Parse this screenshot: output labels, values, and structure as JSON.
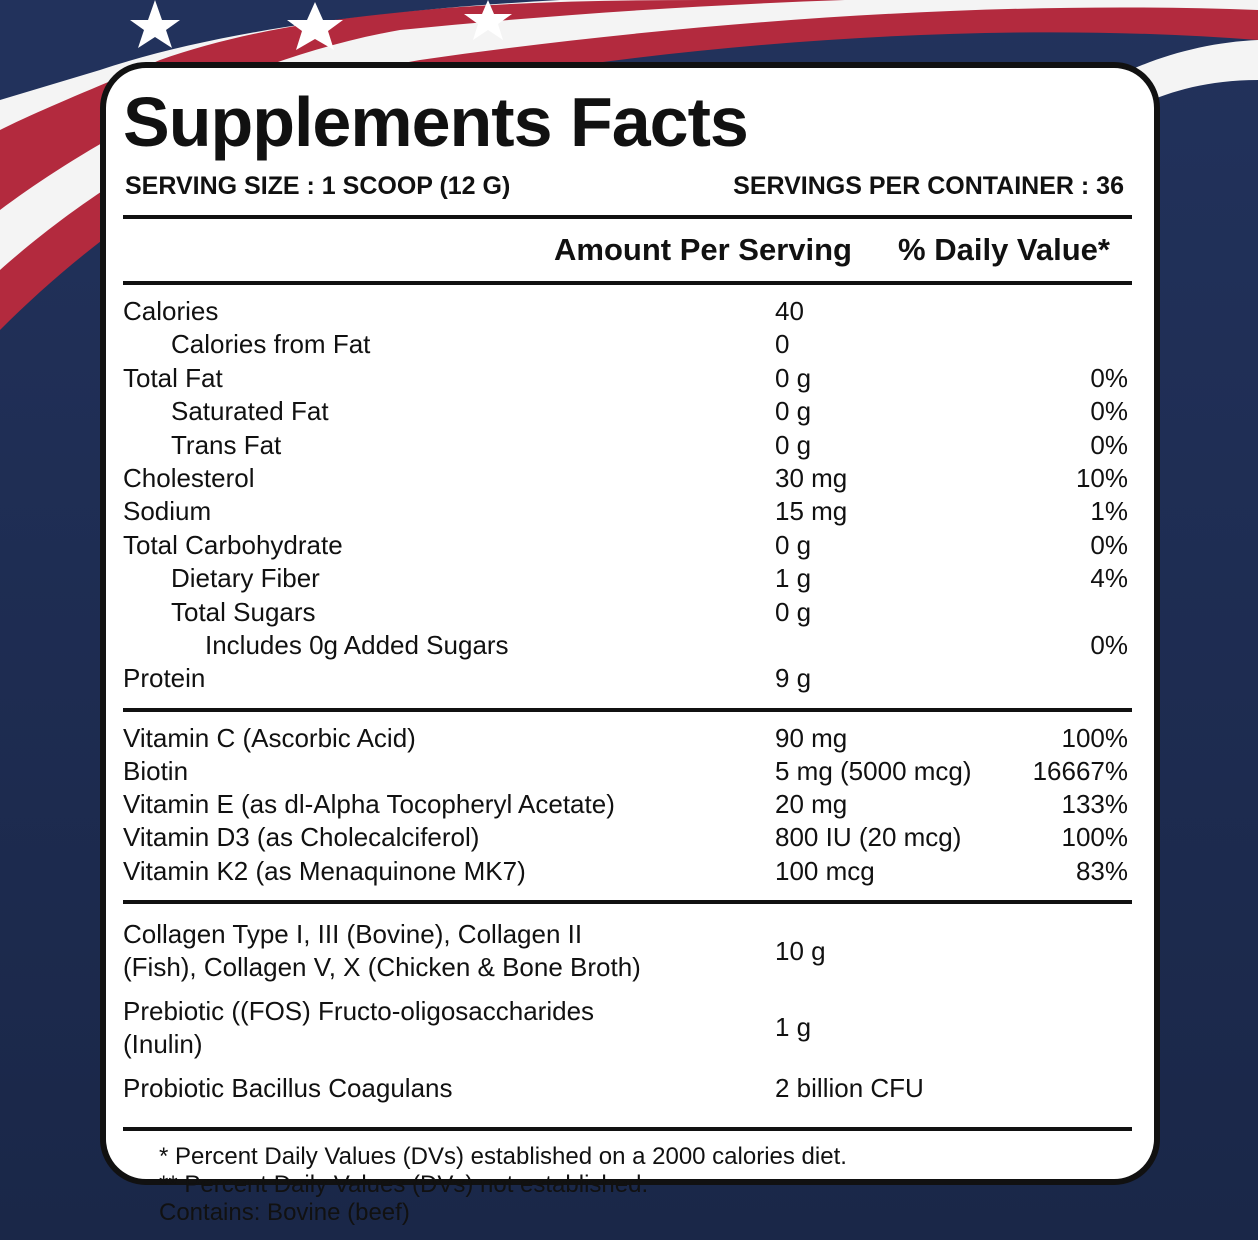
{
  "title": "Supplements Facts",
  "serving_size": "SERVING SIZE : 1 SCOOP (12 G)",
  "servings_per_container": "SERVINGS PER CONTAINER : 36",
  "headers": {
    "amount": "Amount Per Serving",
    "daily_value": "% Daily Value*"
  },
  "sections": [
    {
      "rows": [
        {
          "name": "Calories",
          "amount": "40",
          "sub": [
            {
              "name": "Calories from Fat",
              "amount": "0"
            }
          ]
        },
        {
          "name": "Total Fat",
          "amount": "0 g",
          "dv": "0%",
          "sub": [
            {
              "name": "Saturated Fat",
              "amount": "0 g",
              "dv": "0%"
            },
            {
              "name": "Trans Fat",
              "amount": "0 g",
              "dv": "0%"
            }
          ]
        },
        {
          "name": "Cholesterol",
          "amount": "30 mg",
          "dv": "10%"
        },
        {
          "name": "Sodium",
          "amount": "15 mg",
          "dv": "1%"
        },
        {
          "name": "Total Carbohydrate",
          "amount": "0 g",
          "dv": "0%",
          "sub": [
            {
              "name": "Dietary Fiber",
              "amount": "1 g",
              "dv": "4%"
            },
            {
              "name": "Total Sugars",
              "amount": "0 g",
              "sub": [
                {
                  "name": "Includes 0g Added Sugars",
                  "dv": "0%"
                }
              ]
            }
          ]
        },
        {
          "name": "Protein",
          "amount": "9 g"
        }
      ]
    },
    {
      "rows": [
        {
          "name": "Vitamin C (Ascorbic Acid)",
          "amount": "90 mg",
          "dv": "100%"
        },
        {
          "name": "Biotin",
          "amount": "5 mg (5000 mcg)",
          "dv": "16667%"
        },
        {
          "name": "Vitamin E (as dl-Alpha Tocopheryl Acetate)",
          "amount": "20 mg",
          "dv": "133%"
        },
        {
          "name": "Vitamin D3 (as Cholecalciferol)",
          "amount": "800 IU (20 mcg)",
          "dv": "100%"
        },
        {
          "name": "Vitamin K2 (as Menaquinone MK7)",
          "amount": "100 mcg",
          "dv": "83%"
        }
      ]
    },
    {
      "rows": [
        {
          "name": "Collagen Type I, III (Bovine), Collagen II (Fish), Collagen V, X (Chicken & Bone Broth)",
          "amount": "10 g"
        },
        {
          "name": "Prebiotic ((FOS) Fructo-oligosaccharides (Inulin)",
          "amount": "1 g"
        },
        {
          "name": "Probiotic Bacillus Coagulans",
          "amount": "2 billion CFU"
        }
      ]
    }
  ],
  "footnotes": [
    "* Percent Daily Values (DVs) established on a 2000 calories diet.",
    "** Percent Daily Values (DVs) not established.",
    "Contains: Bovine (beef)"
  ]
}
